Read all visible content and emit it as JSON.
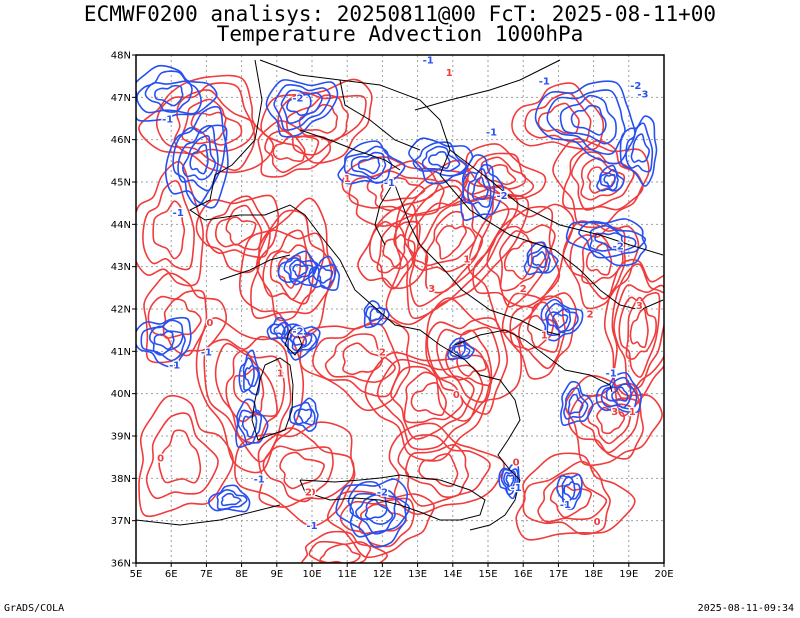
{
  "header": {
    "line1": "ECMWF0200 analisys: 20250811@00 FcT: 2025-08-11+00",
    "line2": "Temperature Advection 1000hPa"
  },
  "map": {
    "lon_labels": [
      "5E",
      "6E",
      "7E",
      "8E",
      "9E",
      "10E",
      "11E",
      "12E",
      "13E",
      "14E",
      "15E",
      "16E",
      "17E",
      "18E",
      "19E",
      "20E"
    ],
    "lat_labels": [
      "48N",
      "47N",
      "46N",
      "45N",
      "44N",
      "43N",
      "42N",
      "41N",
      "40N",
      "39N",
      "38N",
      "37N",
      "36N"
    ],
    "lon_range": [
      5,
      20
    ],
    "lat_range": [
      36,
      48
    ],
    "grid": "dotted",
    "colors": {
      "positive_contours": "#f03c3c",
      "negative_contours": "#2850f0",
      "coastline": "#000000",
      "grid": "#a0a0a0"
    },
    "contour_labels": [
      {
        "text": "-1",
        "lon": 5.9,
        "lat": 46.4
      },
      {
        "text": "-1",
        "lon": 6.2,
        "lat": 44.2
      },
      {
        "text": "-1",
        "lon": 6.1,
        "lat": 40.6
      },
      {
        "text": "-1",
        "lon": 7.0,
        "lat": 40.9
      },
      {
        "text": "-1",
        "lon": 8.5,
        "lat": 37.9
      },
      {
        "text": "-1",
        "lon": 10.0,
        "lat": 36.8
      },
      {
        "text": "-1",
        "lon": 12.2,
        "lat": 44.9
      },
      {
        "text": "-1",
        "lon": 13.3,
        "lat": 47.8
      },
      {
        "text": "-1",
        "lon": 15.1,
        "lat": 46.1
      },
      {
        "text": "-1",
        "lon": 16.6,
        "lat": 47.3
      },
      {
        "text": "-1",
        "lon": 18.5,
        "lat": 40.4
      },
      {
        "text": "-2",
        "lon": 9.6,
        "lat": 46.9
      },
      {
        "text": "-2",
        "lon": 15.4,
        "lat": 44.6
      },
      {
        "text": "-2",
        "lon": 18.7,
        "lat": 43.4
      },
      {
        "text": "-2",
        "lon": 12.0,
        "lat": 37.6
      },
      {
        "text": "-2",
        "lon": 19.2,
        "lat": 47.2
      },
      {
        "text": "-3",
        "lon": 19.4,
        "lat": 47.0
      },
      {
        "text": "-1",
        "lon": 15.8,
        "lat": 37.7
      },
      {
        "text": "-1",
        "lon": 17.2,
        "lat": 37.3
      },
      {
        "text": "-2",
        "lon": 9.6,
        "lat": 41.4
      },
      {
        "text": "0",
        "lon": 7.1,
        "lat": 41.6
      },
      {
        "text": "0",
        "lon": 5.7,
        "lat": 38.4
      },
      {
        "text": "0",
        "lon": 10.0,
        "lat": 37.6
      },
      {
        "text": "0",
        "lon": 14.1,
        "lat": 39.9
      },
      {
        "text": "0",
        "lon": 15.8,
        "lat": 38.3
      },
      {
        "text": "0",
        "lon": 18.1,
        "lat": 36.9
      },
      {
        "text": "1",
        "lon": 13.9,
        "lat": 47.5
      },
      {
        "text": "1",
        "lon": 9.1,
        "lat": 40.4
      },
      {
        "text": "1",
        "lon": 11.0,
        "lat": 45.0
      },
      {
        "text": "1",
        "lon": 14.4,
        "lat": 43.1
      },
      {
        "text": "1",
        "lon": 16.6,
        "lat": 41.3
      },
      {
        "text": "1",
        "lon": 19.1,
        "lat": 39.5
      },
      {
        "text": "2",
        "lon": 12.0,
        "lat": 40.9
      },
      {
        "text": "2",
        "lon": 9.9,
        "lat": 37.6
      },
      {
        "text": "2",
        "lon": 17.9,
        "lat": 41.8
      },
      {
        "text": "2",
        "lon": 16.0,
        "lat": 42.4
      },
      {
        "text": "3",
        "lon": 13.4,
        "lat": 42.4
      },
      {
        "text": "3",
        "lon": 19.3,
        "lat": 42.0
      },
      {
        "text": "3",
        "lon": 18.6,
        "lat": 39.5
      }
    ]
  },
  "footer": {
    "left": "GrADS/COLA",
    "right": "2025-08-11-09:34"
  }
}
